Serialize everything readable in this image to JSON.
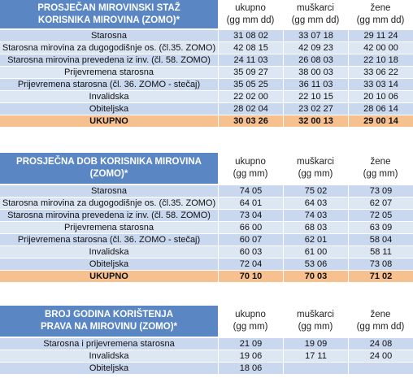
{
  "tables": [
    {
      "title_line1": "PROSJEČAN MIROVINSKI STAŽ",
      "title_line2": "KORISNIKA MIROVINA (ZOMO)*",
      "columns": [
        {
          "line1": "ukupno",
          "line2": "(gg mm dd)"
        },
        {
          "line1": "muškarci",
          "line2": "(gg mm dd)"
        },
        {
          "line1": "žene",
          "line2": "(gg mm dd)"
        }
      ],
      "rows": [
        {
          "label": "Starosna",
          "values": [
            "31 08 02",
            "33 07 18",
            "29 11 24"
          ]
        },
        {
          "label": "Starosna mirovina za dugogodišnje os. (čl.35. ZOMO)",
          "values": [
            "42 08 15",
            "42 09 23",
            "42 00 00"
          ]
        },
        {
          "label": "Starosna mirovina prevedena iz inv. (čl. 58. ZOMO)",
          "values": [
            "24 11 03",
            "26 08 03",
            "22 10 18"
          ]
        },
        {
          "label": "Prijevremena starosna",
          "values": [
            "35 09 27",
            "38 00 03",
            "33 06 22"
          ]
        },
        {
          "label": "Prijevremena starosna (čl. 36. ZOMO - stečaj)",
          "values": [
            "35 05 25",
            "36 11 03",
            "33 03 14"
          ]
        },
        {
          "label": "Invalidska",
          "values": [
            "22 02 00",
            "22 10 15",
            "20 10 06"
          ]
        },
        {
          "label": "Obiteljska",
          "values": [
            "28 02 04",
            "23 02 27",
            "28 06 14"
          ]
        }
      ],
      "total": {
        "label": "UKUPNO",
        "values": [
          "30 03 26",
          "32 00 13",
          "29 00 14"
        ]
      }
    },
    {
      "title_line1": "PROSJEČNA DOB KORISNIKA MIROVINA (ZOMO)*",
      "title_line2": "",
      "columns": [
        {
          "line1": "ukupno",
          "line2": "(gg mm)"
        },
        {
          "line1": "muškarci",
          "line2": "(gg mm)"
        },
        {
          "line1": "žene",
          "line2": "(gg mm)"
        }
      ],
      "rows": [
        {
          "label": "Starosna",
          "values": [
            "74 05",
            "75 02",
            "73 09"
          ]
        },
        {
          "label": "Starosna mirovina za dugogodišnje os. (čl.35. ZOMO)",
          "values": [
            "64 01",
            "64 03",
            "62 07"
          ]
        },
        {
          "label": "Starosna mirovina prevedena iz inv. (čl. 58. ZOMO)",
          "values": [
            "73 04",
            "74 03",
            "72 05"
          ]
        },
        {
          "label": "Prijevremena starosna",
          "values": [
            "66 00",
            "68 03",
            "63 09"
          ]
        },
        {
          "label": "Prijevremena starosna (čl. 36. ZOMO - stečaj)",
          "values": [
            "60 07",
            "62 01",
            "58 04"
          ]
        },
        {
          "label": "Invalidska",
          "values": [
            "60 03",
            "61 00",
            "58 11"
          ]
        },
        {
          "label": "Obiteljska",
          "values": [
            "72 04",
            "53 06",
            "73 08"
          ]
        }
      ],
      "total": {
        "label": "UKUPNO",
        "values": [
          "70 10",
          "70 03",
          "71 02"
        ]
      }
    },
    {
      "title_line1": "BROJ GODINA KORIŠTENJA",
      "title_line2": "PRAVA NA MIROVINU (ZOMO)*",
      "columns": [
        {
          "line1": "ukupno",
          "line2": "(gg mm)"
        },
        {
          "line1": "muškarci",
          "line2": "(gg mm)"
        },
        {
          "line1": "žene",
          "line2": "(gg mm dd)"
        }
      ],
      "rows": [
        {
          "label": "Starosna  i prijevremena starosna",
          "values": [
            "21 09",
            "19 09",
            "24 08"
          ]
        },
        {
          "label": "Invalidska",
          "values": [
            "19 06",
            "17 11",
            "24 00"
          ]
        },
        {
          "label": "Obiteljska",
          "values": [
            "18 06",
            "",
            ""
          ]
        }
      ]
    }
  ]
}
